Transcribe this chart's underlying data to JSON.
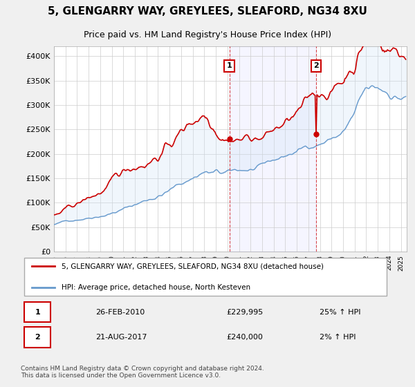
{
  "title": "5, GLENGARRY WAY, GREYLEES, SLEAFORD, NG34 8XU",
  "subtitle": "Price paid vs. HM Land Registry's House Price Index (HPI)",
  "ylim": [
    0,
    420000
  ],
  "yticks": [
    0,
    50000,
    100000,
    150000,
    200000,
    250000,
    300000,
    350000,
    400000
  ],
  "ytick_labels": [
    "£0",
    "£50K",
    "£100K",
    "£150K",
    "£200K",
    "£250K",
    "£300K",
    "£350K",
    "£400K"
  ],
  "house_color": "#cc0000",
  "hpi_color": "#6699cc",
  "hpi_fill_color": "#d0e4f7",
  "marker1_date_idx": 180,
  "marker2_date_idx": 270,
  "marker1_label": "1",
  "marker2_label": "2",
  "marker1_price": 229995,
  "marker2_price": 240000,
  "marker1_date": "26-FEB-2010",
  "marker2_date": "21-AUG-2017",
  "marker1_pct": "25% ↑ HPI",
  "marker2_pct": "2% ↑ HPI",
  "legend_house": "5, GLENGARRY WAY, GREYLEES, SLEAFORD, NG34 8XU (detached house)",
  "legend_hpi": "HPI: Average price, detached house, North Kesteven",
  "footer": "Contains HM Land Registry data © Crown copyright and database right 2024.\nThis data is licensed under the Open Government Licence v3.0.",
  "background_color": "#f0f0f0",
  "plot_bg_color": "#ffffff"
}
